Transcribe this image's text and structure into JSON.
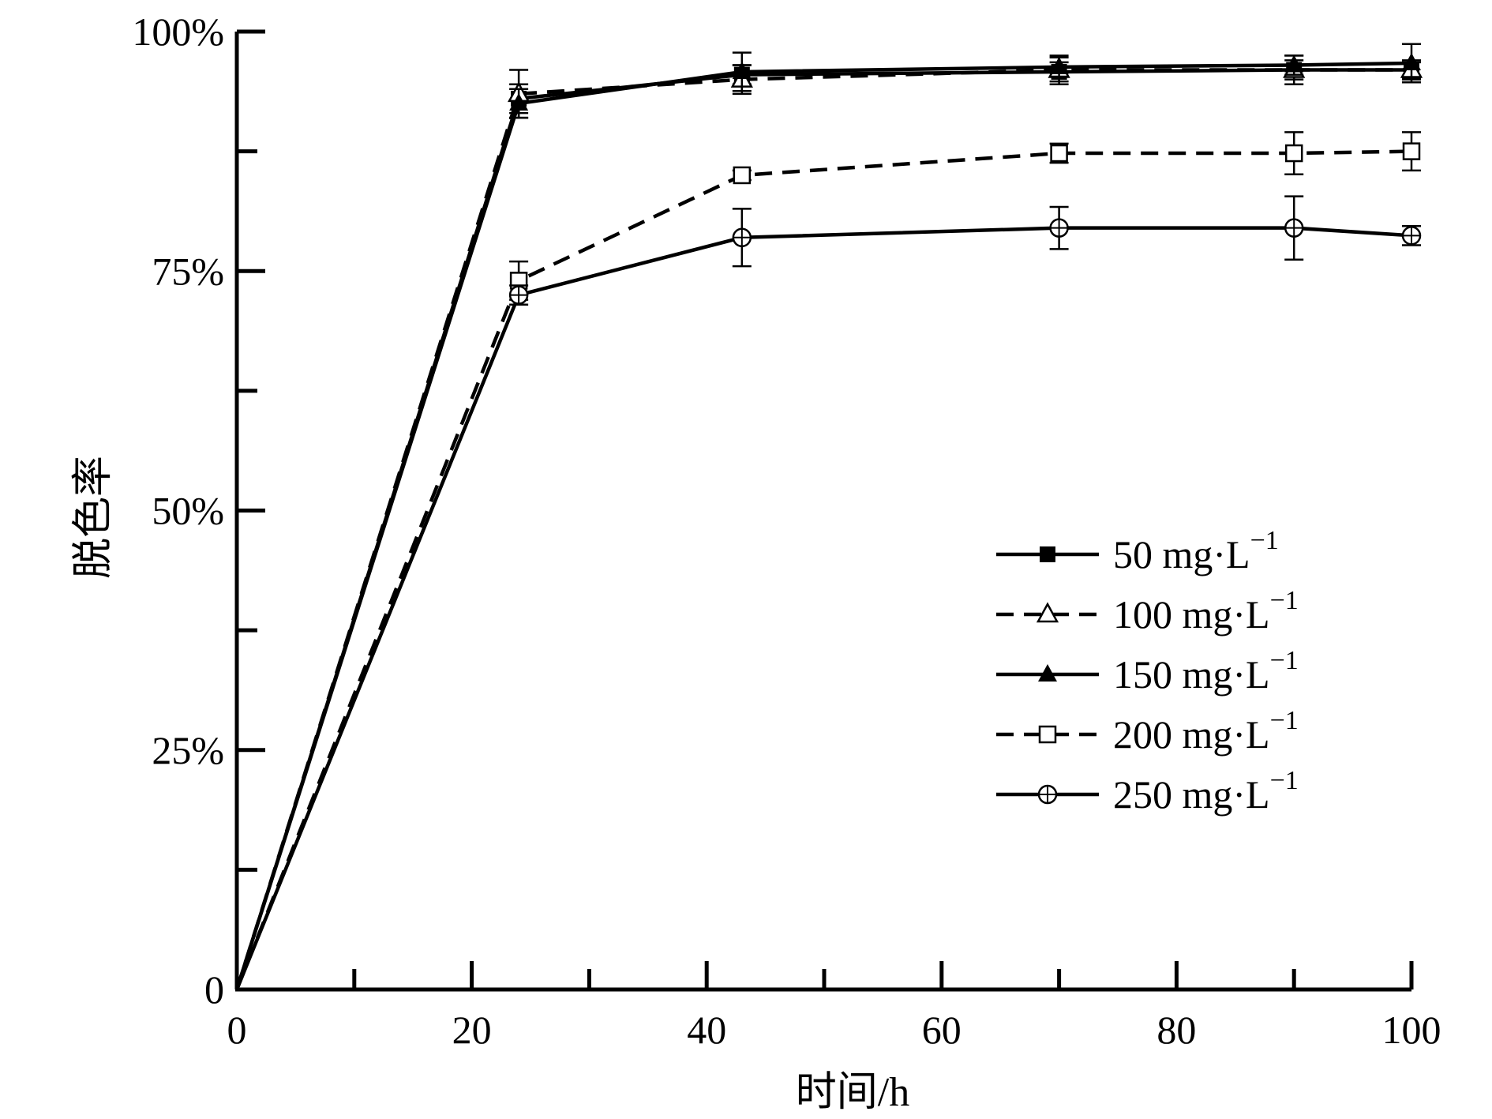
{
  "chart_data": {
    "type": "line",
    "title": "",
    "xlabel": "时间/h",
    "ylabel": "脱色率",
    "xlim": [
      0,
      100
    ],
    "ylim": [
      0,
      100
    ],
    "x_major_ticks": [
      0,
      20,
      40,
      60,
      80,
      100
    ],
    "x_minor_ticks": [
      10,
      30,
      50,
      70,
      90
    ],
    "x_tick_labels": [
      "0",
      "20",
      "40",
      "60",
      "80",
      "100"
    ],
    "y_major_ticks": [
      0,
      25,
      50,
      75,
      100
    ],
    "y_minor_ticks": [
      12.5,
      37.5,
      62.5,
      87.5
    ],
    "y_tick_labels": [
      "0",
      "25%",
      "50%",
      "75%",
      "100%"
    ],
    "grid": false,
    "legend_position": "right-middle",
    "series": [
      {
        "name": "50 mg·L",
        "superscript": "−1",
        "marker": "square-filled",
        "line": "solid",
        "x": [
          0,
          24,
          43,
          70,
          90,
          100
        ],
        "y": [
          0,
          93,
          95.5,
          95.8,
          96,
          96
        ],
        "err": [
          0,
          1.5,
          1.0,
          1.0,
          1.0,
          0.8
        ]
      },
      {
        "name": "100 mg·L",
        "superscript": "−1",
        "marker": "triangle-open",
        "line": "dashed",
        "x": [
          0,
          24,
          43,
          70,
          90,
          100
        ],
        "y": [
          0,
          93.5,
          95,
          96,
          96,
          96
        ],
        "err": [
          0,
          2.5,
          1.5,
          1.5,
          1.5,
          1.0
        ]
      },
      {
        "name": "150 mg·L",
        "superscript": "−1",
        "marker": "triangle-filled",
        "line": "solid",
        "x": [
          0,
          24,
          43,
          70,
          90,
          100
        ],
        "y": [
          0,
          92.5,
          95.8,
          96.3,
          96.5,
          96.7
        ],
        "err": [
          0,
          1.5,
          2.0,
          1.0,
          1.0,
          2.0
        ]
      },
      {
        "name": "200 mg·L",
        "superscript": "−1",
        "marker": "square-open",
        "line": "dashed",
        "x": [
          0,
          24,
          43,
          70,
          90,
          100
        ],
        "y": [
          0,
          74,
          85,
          87.3,
          87.3,
          87.5
        ],
        "err": [
          0,
          2.0,
          0.5,
          1.0,
          2.2,
          2.0
        ]
      },
      {
        "name": "250 mg·L",
        "superscript": "−1",
        "marker": "circle-crossed",
        "line": "solid",
        "x": [
          0,
          24,
          43,
          70,
          90,
          100
        ],
        "y": [
          0,
          72.5,
          78.5,
          79.5,
          79.5,
          78.7
        ],
        "err": [
          0,
          1.0,
          3.0,
          2.2,
          3.3,
          1.0
        ]
      }
    ]
  },
  "colors": {
    "ink": "#000000",
    "background": "#ffffff"
  }
}
